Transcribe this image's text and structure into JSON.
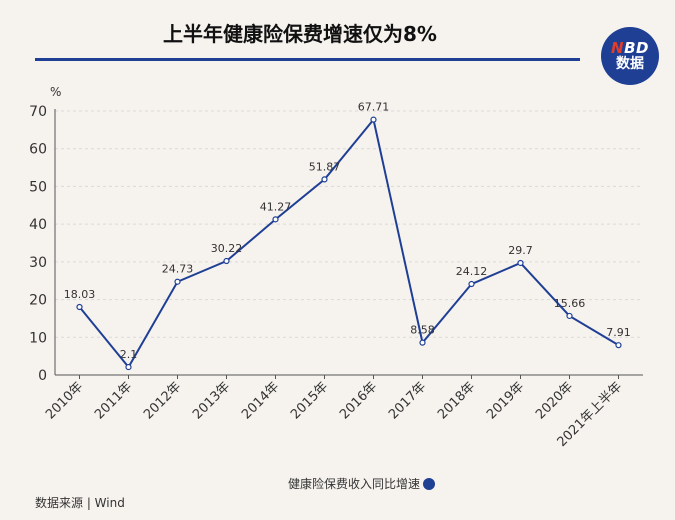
{
  "header": {
    "title": "上半年健康险保费增速仅为8%",
    "logo_top": "NBD",
    "logo_bottom": "数据"
  },
  "source": "数据来源 | Wind",
  "colors": {
    "line": "#1f3f95",
    "rule": "#1f3f95",
    "grid": "#d9d9d9",
    "axis": "#555555"
  },
  "chart_data": {
    "type": "line",
    "categories": [
      "2010年",
      "2011年",
      "2012年",
      "2013年",
      "2014年",
      "2015年",
      "2016年",
      "2017年",
      "2018年",
      "2019年",
      "2020年",
      "2021年上半年"
    ],
    "series": [
      {
        "name": "健康险保费收入同比增速",
        "values": [
          18.03,
          2.1,
          24.73,
          30.22,
          41.27,
          51.87,
          67.71,
          8.58,
          24.12,
          29.7,
          15.66,
          7.91
        ],
        "labels": [
          "18.03",
          "2.1",
          "24.73",
          "30.22",
          "41.27",
          "51.87",
          "67.71",
          "8.58",
          "24.12",
          "29.7",
          "15.66",
          "7.91"
        ]
      }
    ],
    "ylabel": "%",
    "ylim": [
      0,
      70
    ],
    "yticks": [
      "0",
      "10",
      "20",
      "30",
      "40",
      "50",
      "60",
      "70"
    ],
    "grid": true,
    "legend_position": "bottom-center"
  }
}
